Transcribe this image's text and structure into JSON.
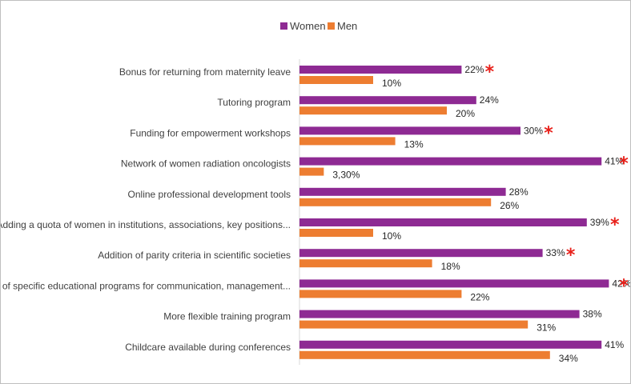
{
  "chart_data": {
    "type": "bar",
    "orientation": "horizontal",
    "categories": [
      "Bonus for returning from maternity leave",
      "Tutoring program",
      "Funding for empowerment workshops",
      "Network of women radiation oncologists",
      "Online professional development tools",
      "Adding a quota of women in institutions, associations, key positions...",
      "Addition of parity criteria in scientific societies",
      "Creation of specific educational programs for communication, management...",
      "More flexible training program",
      "Childcare available during conferences"
    ],
    "series": [
      {
        "name": "Women",
        "color": "#8e2a93",
        "values": [
          22,
          24,
          30,
          41,
          28,
          39,
          33,
          42,
          38,
          41
        ],
        "labels": [
          "22%",
          "24%",
          "30%",
          "41%",
          "28%",
          "39%",
          "33%",
          "42%",
          "38%",
          "41%"
        ]
      },
      {
        "name": "Men",
        "color": "#ed7d31",
        "values": [
          10,
          20,
          13,
          3.3,
          26,
          10,
          18,
          22,
          31,
          34
        ],
        "labels": [
          "10%",
          "20%",
          "13%",
          "3,30%",
          "26%",
          "10%",
          "18%",
          "22%",
          "31%",
          "34%"
        ]
      }
    ],
    "significant": [
      true,
      false,
      true,
      true,
      false,
      true,
      true,
      true,
      false,
      false
    ],
    "significance_marker": "*",
    "marker_color": "#e8201a",
    "xlim": [
      0,
      42.5
    ],
    "legend_position": "top-center",
    "grid": false
  }
}
